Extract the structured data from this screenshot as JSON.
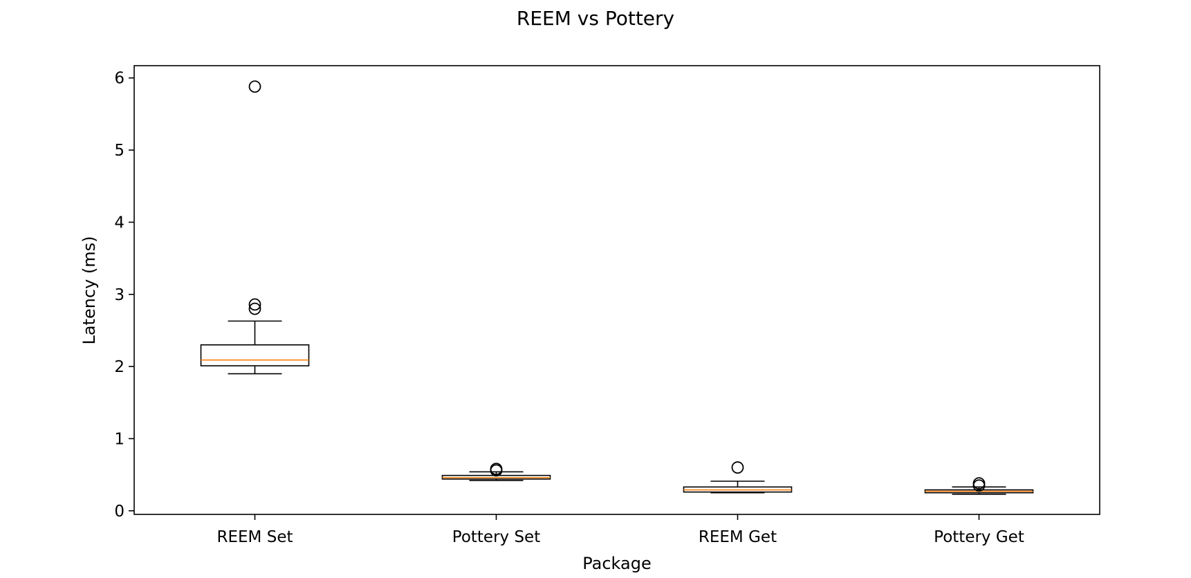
{
  "chart_data": {
    "type": "box",
    "title": "REEM vs Pottery",
    "xlabel": "Package",
    "ylabel": "Latency (ms)",
    "categories": [
      "REEM Set",
      "Pottery Set",
      "REEM Get",
      "Pottery Get"
    ],
    "ylim": [
      -0.05,
      6.17
    ],
    "yticks": [
      0,
      1,
      2,
      3,
      4,
      5,
      6
    ],
    "grid": false,
    "colors": {
      "box": "#000000",
      "median": "#ff7f0e",
      "flier": "#000000"
    },
    "boxes": [
      {
        "category": "REEM Set",
        "whisker_low": 1.9,
        "q1": 2.01,
        "median": 2.09,
        "q3": 2.3,
        "whisker_high": 2.63,
        "fliers": [
          2.8,
          2.86,
          5.88
        ]
      },
      {
        "category": "Pottery Set",
        "whisker_low": 0.42,
        "q1": 0.44,
        "median": 0.46,
        "q3": 0.49,
        "whisker_high": 0.54,
        "fliers": [
          0.56,
          0.58
        ]
      },
      {
        "category": "REEM Get",
        "whisker_low": 0.25,
        "q1": 0.26,
        "median": 0.29,
        "q3": 0.33,
        "whisker_high": 0.41,
        "fliers": [
          0.6
        ]
      },
      {
        "category": "Pottery Get",
        "whisker_low": 0.23,
        "q1": 0.25,
        "median": 0.27,
        "q3": 0.29,
        "whisker_high": 0.33,
        "fliers": [
          0.35,
          0.38
        ]
      }
    ]
  }
}
